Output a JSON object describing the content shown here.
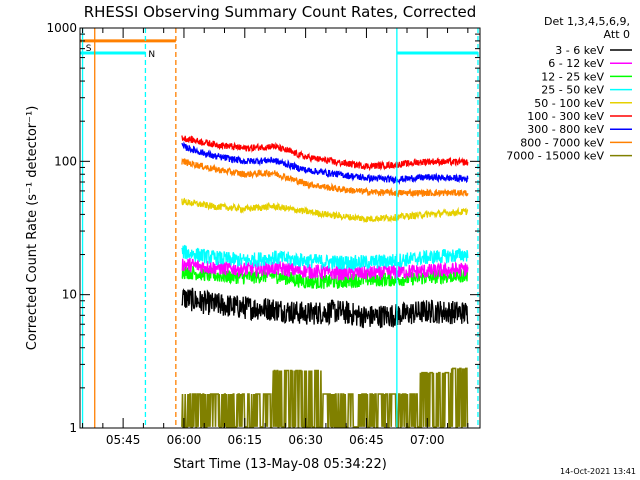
{
  "chart_data": {
    "type": "line",
    "title": "RHESSI Observing Summary Count Rates, Corrected",
    "xlabel": "Start Time (13-May-08 05:34:22)",
    "ylabel": "Corrected Count Rate (s⁻¹ detector⁻¹)",
    "yscale": "log",
    "ylim": [
      1,
      1000
    ],
    "xlim": [
      "05:34:22",
      "07:13:00"
    ],
    "x_ticks": [
      "05:45",
      "06:00",
      "06:15",
      "06:30",
      "06:45",
      "07:00"
    ],
    "y_ticks": [
      "1",
      "10",
      "100",
      "1000"
    ],
    "legend_header": [
      "Det 1,3,4,5,6,9,",
      "Att 0"
    ],
    "legend_position": "right",
    "footer_date": "14-Oct-2021 13:41",
    "flag_labels": [
      "S",
      "N"
    ],
    "series": [
      {
        "name": "3 - 6 keV",
        "color": "#000000",
        "x": [
          "05:59:30",
          "06:07",
          "06:15",
          "06:22",
          "06:30",
          "06:38",
          "06:45",
          "06:52",
          "07:00",
          "07:10"
        ],
        "values": [
          9.5,
          8.5,
          8.0,
          7.8,
          7.2,
          7.5,
          6.8,
          7.0,
          7.5,
          7.3
        ]
      },
      {
        "name": "6 - 12 keV",
        "color": "#ff00ff",
        "x": [
          "05:59:30",
          "06:07",
          "06:15",
          "06:22",
          "06:30",
          "06:38",
          "06:45",
          "06:52",
          "07:00",
          "07:10"
        ],
        "values": [
          17,
          16,
          15.5,
          15.8,
          15,
          14.5,
          14.5,
          14.8,
          15,
          15.5
        ]
      },
      {
        "name": "12 - 25 keV",
        "color": "#00ff00",
        "x": [
          "05:59:30",
          "06:07",
          "06:15",
          "06:22",
          "06:30",
          "06:38",
          "06:45",
          "06:52",
          "07:00",
          "07:10"
        ],
        "values": [
          15,
          14,
          13.5,
          14,
          12.5,
          12.5,
          13,
          13,
          13.5,
          14
        ]
      },
      {
        "name": "25 - 50 keV",
        "color": "#00ffff",
        "x": [
          "05:59:30",
          "06:07",
          "06:15",
          "06:22",
          "06:30",
          "06:38",
          "06:45",
          "06:52",
          "07:00",
          "07:10"
        ],
        "values": [
          21,
          19,
          18,
          19,
          18,
          17.5,
          17.5,
          18,
          19,
          20
        ]
      },
      {
        "name": "50 - 100 keV",
        "color": "#e6d000",
        "x": [
          "05:59:30",
          "06:07",
          "06:15",
          "06:22",
          "06:30",
          "06:38",
          "06:45",
          "06:52",
          "07:00",
          "07:10"
        ],
        "values": [
          50,
          46,
          44,
          46,
          42,
          39,
          37,
          38,
          40,
          42
        ]
      },
      {
        "name": "100 - 300 keV",
        "color": "#ff0000",
        "x": [
          "05:59:30",
          "06:07",
          "06:15",
          "06:22",
          "06:30",
          "06:38",
          "06:45",
          "06:52",
          "07:00",
          "07:10"
        ],
        "values": [
          150,
          135,
          125,
          130,
          108,
          98,
          92,
          94,
          100,
          98
        ]
      },
      {
        "name": "300 - 800 keV",
        "color": "#0000ff",
        "x": [
          "05:59:30",
          "06:07",
          "06:15",
          "06:22",
          "06:30",
          "06:38",
          "06:45",
          "06:52",
          "07:00",
          "07:10"
        ],
        "values": [
          130,
          110,
          100,
          102,
          86,
          80,
          75,
          73,
          76,
          74
        ]
      },
      {
        "name": "800 - 7000 keV",
        "color": "#ff8000",
        "x": [
          "05:59:30",
          "06:07",
          "06:15",
          "06:22",
          "06:30",
          "06:38",
          "06:45",
          "06:52",
          "07:00",
          "07:10"
        ],
        "values": [
          100,
          88,
          80,
          82,
          68,
          62,
          59,
          58,
          58,
          58
        ]
      },
      {
        "name": "7000 - 15000 keV",
        "color": "#808000",
        "x": [
          "05:59:30",
          "06:15",
          "06:22",
          "06:27",
          "06:34",
          "06:45",
          "06:52",
          "06:58",
          "07:06",
          "07:10"
        ],
        "values": [
          1.8,
          1.8,
          2.7,
          2.7,
          1.8,
          1.8,
          1.8,
          2.6,
          2.8,
          2.8
        ]
      }
    ],
    "orange_flag": {
      "x": [
        "05:34:22",
        "05:38:00",
        "05:58:00"
      ],
      "value": 800
    },
    "cyan_flag_segments": [
      {
        "x": [
          "05:34:22",
          "05:50:30"
        ],
        "value": 650
      },
      {
        "x": [
          "06:52:30",
          "07:12:30"
        ],
        "value": 650
      }
    ],
    "vertical_markers": [
      {
        "x": "05:35:00",
        "color": "#00ffff",
        "style": "solid"
      },
      {
        "x": "05:38:00",
        "color": "#ff8000",
        "style": "solid"
      },
      {
        "x": "05:50:30",
        "color": "#00ffff",
        "style": "dashed"
      },
      {
        "x": "05:58:00",
        "color": "#ff8000",
        "style": "dashed"
      },
      {
        "x": "06:52:30",
        "color": "#00ffff",
        "style": "solid"
      },
      {
        "x": "07:12:30",
        "color": "#00ffff",
        "style": "dashed"
      }
    ]
  }
}
